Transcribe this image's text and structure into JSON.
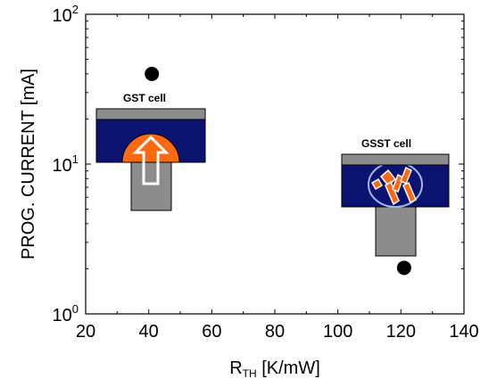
{
  "chart_data": {
    "type": "scatter",
    "xlabel_main": "R",
    "xlabel_sub": "TH",
    "xlabel_unit": " [K/mW]",
    "ylabel": "PROG. CURRENT [mA]",
    "xlim": [
      20,
      140
    ],
    "ylim": [
      1,
      100
    ],
    "yscale": "log",
    "grid": false,
    "x_ticks": [
      20,
      40,
      60,
      80,
      100,
      120,
      140
    ],
    "x_tick_labels": [
      "20",
      "40",
      "60",
      "80",
      "100",
      "120",
      "140"
    ],
    "y_tick_base": "10",
    "y_ticks": [
      1,
      10,
      100
    ],
    "y_tick_exponents": [
      "0",
      "1",
      "2"
    ],
    "points": [
      {
        "x": 41,
        "y": 40
      },
      {
        "x": 121,
        "y": 2.03
      }
    ],
    "annotations": [
      {
        "label": "GST cell"
      },
      {
        "label": "GSST cell"
      }
    ],
    "colors": {
      "cell_fill": "#0a1470",
      "electrode": "#8c8c8c",
      "hotspot": "#ff6a10",
      "axis": "#000000",
      "point": "#000000"
    }
  }
}
